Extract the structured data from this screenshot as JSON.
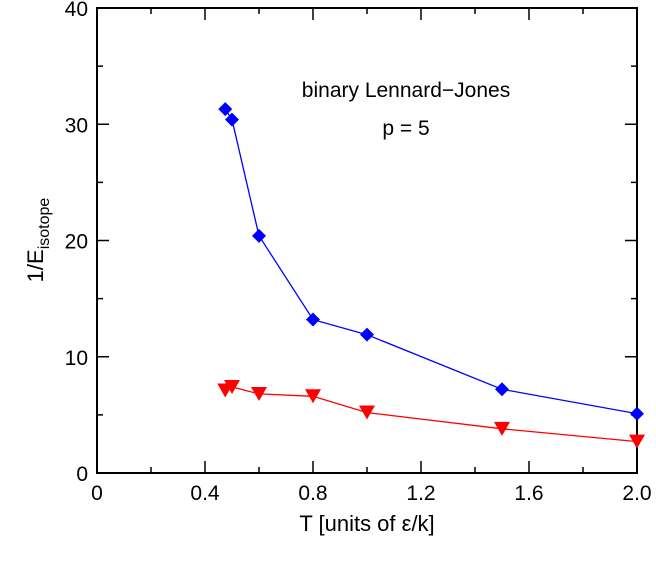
{
  "chart_data": {
    "type": "line",
    "xlabel": "T [units of ε/k]",
    "ylabel_main": "1/E",
    "ylabel_sub": "isotope",
    "annotations": [
      "binary Lennard−Jones",
      "p = 5"
    ],
    "xlim": [
      0,
      2.0
    ],
    "ylim": [
      0,
      40
    ],
    "xticks": [
      0,
      0.4,
      0.8,
      1.2,
      1.6,
      2.0
    ],
    "xtick_labels": [
      "0",
      "0.4",
      "0.8",
      "1.2",
      "1.6",
      "2.0"
    ],
    "yticks": [
      0,
      10,
      20,
      30,
      40
    ],
    "ytick_labels": [
      "0",
      "10",
      "20",
      "30",
      "40"
    ],
    "grid": false,
    "series": [
      {
        "marker": "diamond",
        "color": "#0000ff",
        "x": [
          0.475,
          0.5,
          0.6,
          0.8,
          1.0,
          1.5,
          2.0
        ],
        "y": [
          31.3,
          30.4,
          20.4,
          13.2,
          11.9,
          7.2,
          5.1
        ]
      },
      {
        "marker": "triangle-down",
        "color": "#ff0000",
        "x": [
          0.475,
          0.5,
          0.6,
          0.8,
          1.0,
          1.5,
          2.0
        ],
        "y": [
          7.1,
          7.4,
          6.8,
          6.6,
          5.2,
          3.8,
          2.7
        ]
      }
    ]
  }
}
